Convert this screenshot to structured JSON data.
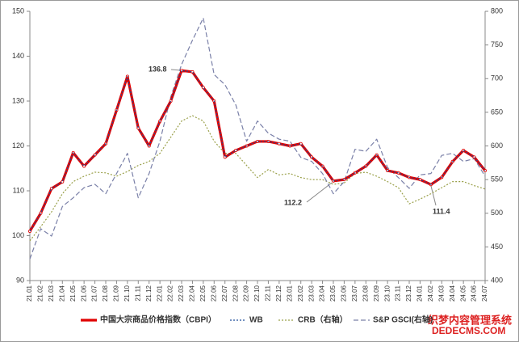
{
  "chart_data": {
    "type": "line",
    "categories": [
      "21.01",
      "21.02",
      "21.03",
      "21.04",
      "21.05",
      "21.06",
      "21.07",
      "21.08",
      "21.09",
      "21.10",
      "21.11",
      "21.12",
      "22.01",
      "22.02",
      "22.03",
      "22.04",
      "22.05",
      "22.06",
      "22.07",
      "22.08",
      "22.09",
      "22.10",
      "22.11",
      "22.12",
      "23.01",
      "23.02",
      "23.03",
      "23.04",
      "23.05",
      "23.06",
      "23.07",
      "23.08",
      "23.09",
      "23.10",
      "23.11",
      "23.12",
      "24.01",
      "24.02",
      "24.03",
      "24.04",
      "24.05",
      "24.06",
      "24.07"
    ],
    "series": [
      {
        "name": "中国大宗商品价格指数（CBPI）",
        "color": "#e00000",
        "line_style": "solid",
        "axis": "y",
        "values": [
          101,
          105,
          110.5,
          112,
          118.5,
          115.5,
          118,
          120.5,
          128,
          135.5,
          124,
          120,
          125.5,
          130,
          136.8,
          136.5,
          133,
          130,
          117.5,
          119,
          120,
          121,
          121,
          120.5,
          120,
          120.5,
          117.5,
          115.5,
          112.2,
          112.5,
          114,
          115.5,
          118,
          114.5,
          114,
          113,
          112.5,
          111.4,
          113,
          116.5,
          119,
          117.5,
          114.5
        ]
      },
      {
        "name": "WB",
        "color": "#1f4e9a",
        "line_style": "dotted",
        "axis": "y",
        "values": [
          101,
          105,
          110.5,
          112,
          118.5,
          115.5,
          118,
          120.5,
          128,
          135.5,
          124,
          120,
          125.5,
          130,
          136.8,
          136.5,
          133,
          130,
          117.5,
          119,
          120,
          121,
          121,
          120.5,
          120,
          120.5,
          117.5,
          115.5,
          112.2,
          112.5,
          114,
          115.5,
          118,
          114.5,
          114,
          113,
          112.5,
          111.4,
          113,
          116.5,
          119,
          117.5,
          114.5
        ]
      },
      {
        "name": "CRB（右轴）",
        "color": "#9aa04a",
        "line_style": "dotted",
        "axis": "y2",
        "values": [
          459,
          480,
          502,
          529,
          547,
          555,
          561,
          560,
          555,
          562,
          571,
          577,
          589,
          613,
          637,
          645,
          637,
          607,
          589,
          589,
          571,
          553,
          565,
          557,
          559,
          553,
          550,
          550,
          543,
          545,
          559,
          561,
          555,
          547,
          538,
          514,
          521,
          529,
          538,
          547,
          547,
          541,
          536
        ]
      },
      {
        "name": "S&P GSCI(右轴)",
        "color": "#7a80a8",
        "line_style": "dashed",
        "axis": "y2",
        "values": [
          432,
          477,
          466,
          510,
          523,
          538,
          543,
          529,
          559,
          589,
          523,
          559,
          607,
          673,
          721,
          757,
          790,
          706,
          691,
          661,
          607,
          637,
          619,
          610,
          607,
          583,
          577,
          559,
          529,
          547,
          595,
          592,
          610,
          568,
          553,
          537,
          557,
          559,
          586,
          589,
          577,
          581,
          555
        ]
      }
    ],
    "ylim": [
      90,
      150
    ],
    "yticks": [
      90,
      100,
      110,
      120,
      130,
      140,
      150
    ],
    "y2lim": [
      400,
      800
    ],
    "y2ticks": [
      400,
      450,
      500,
      550,
      600,
      650,
      700,
      750,
      800
    ],
    "grid": false,
    "annotations": [
      "136.8",
      "112.2",
      "111.4"
    ]
  },
  "watermark": [
    "织梦内容管理系统",
    "DEDECMS.COM"
  ]
}
